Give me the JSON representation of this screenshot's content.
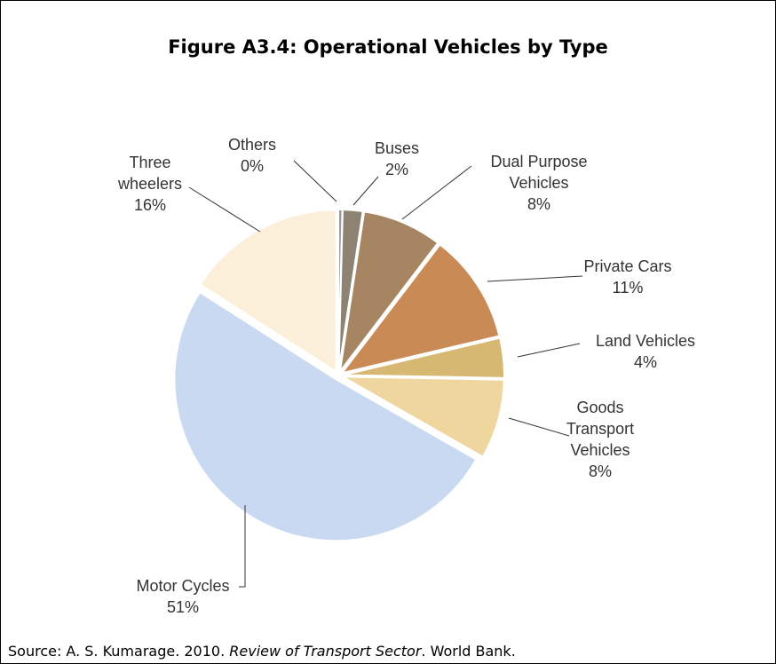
{
  "chart_data": {
    "type": "pie",
    "title": "Figure A3.4: Operational Vehicles by Type",
    "categories": [
      "Others",
      "Buses",
      "Dual Purpose Vehicles",
      "Private Cars",
      "Land Vehicles",
      "Goods Transport Vehicles",
      "Motor Cycles",
      "Three wheelers"
    ],
    "values": [
      0.4,
      2,
      8,
      11,
      4,
      8,
      51,
      16
    ],
    "value_labels": [
      "0%",
      "2%",
      "8%",
      "11%",
      "4%",
      "8%",
      "51%",
      "16%"
    ],
    "colors": [
      "#9a9a9a",
      "#8e8272",
      "#a58562",
      "#c98a55",
      "#d6b872",
      "#efd59e",
      "#c9d9f2",
      "#fbefd9"
    ]
  },
  "source": {
    "prefix": "Source: A. S. Kumarage. 2010.",
    "title": "Review of Transport Sector",
    "suffix": ". World Bank."
  }
}
